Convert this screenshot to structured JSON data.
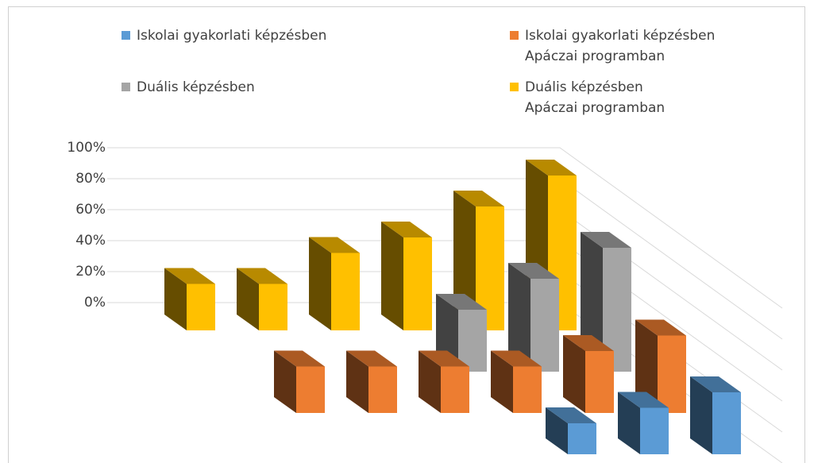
{
  "chart_data": {
    "type": "bar3d",
    "categories": [
      null,
      null,
      null,
      null,
      null,
      null
    ],
    "series": [
      {
        "name": "Iskolai gyakorlati képzésben",
        "color": "#5b9bd5",
        "values": [
          0,
          0,
          0,
          20,
          30,
          40
        ]
      },
      {
        "name": "Iskolai gyakorlati képzésben\nApáczai programban",
        "color": "#ed7d31",
        "values": [
          30,
          30,
          30,
          30,
          40,
          50
        ]
      },
      {
        "name": "Duális képzésben",
        "color": "#a5a5a5",
        "values": [
          0,
          0,
          0,
          40,
          60,
          80
        ]
      },
      {
        "name": "Duális képzésben\nApáczai programban",
        "color": "#ffc000",
        "values": [
          30,
          30,
          50,
          60,
          80,
          100
        ]
      }
    ],
    "ylim": [
      0,
      100
    ],
    "yticks": [
      {
        "value": 0,
        "label": "0%"
      },
      {
        "value": 20,
        "label": "20%"
      },
      {
        "value": 40,
        "label": "40%"
      },
      {
        "value": 60,
        "label": "60%"
      },
      {
        "value": 80,
        "label": "80%"
      },
      {
        "value": 100,
        "label": "100%"
      }
    ],
    "grid": true
  }
}
